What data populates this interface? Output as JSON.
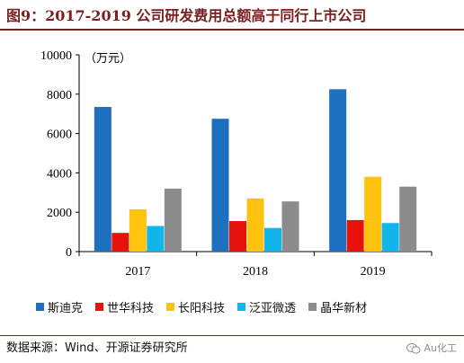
{
  "header": {
    "title": "图9：2017-2019 公司研发费用总额高于同行上市公司"
  },
  "chart_data": {
    "type": "bar",
    "categories": [
      "2017",
      "2018",
      "2019"
    ],
    "series": [
      {
        "name": "斯迪克",
        "color": "#1f6fbf",
        "values": [
          7350,
          6750,
          8250
        ]
      },
      {
        "name": "世华科技",
        "color": "#e8120c",
        "values": [
          950,
          1550,
          1600
        ]
      },
      {
        "name": "长阳科技",
        "color": "#ffc20e",
        "values": [
          2150,
          2700,
          3800
        ]
      },
      {
        "name": "泛亚微透",
        "color": "#11b5ea",
        "values": [
          1300,
          1200,
          1450
        ]
      },
      {
        "name": "晶华新材",
        "color": "#8c8c8c",
        "values": [
          3200,
          2550,
          3300
        ]
      }
    ],
    "unit_label": "（万元）",
    "ylim": [
      0,
      10000
    ],
    "yticks": [
      0,
      2000,
      4000,
      6000,
      8000,
      10000
    ],
    "grid": false,
    "legend_position": "bottom"
  },
  "footer": {
    "source": "数据来源：Wind、开源证券研究所",
    "watermark": "Au化工",
    "watermark_icon": "wechat-icon"
  }
}
